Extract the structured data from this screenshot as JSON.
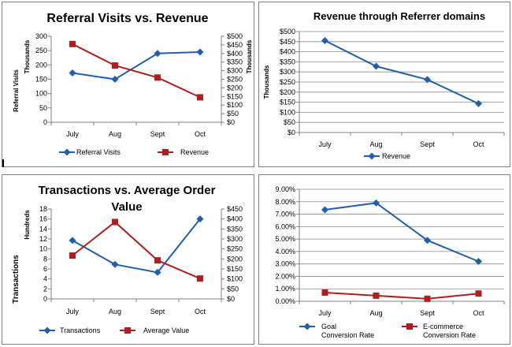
{
  "chart_data": [
    {
      "type": "line",
      "title_lines": [
        "Referral Visits vs. Revenue"
      ],
      "categories": [
        "July",
        "Aug",
        "Sept",
        "Oct"
      ],
      "ylabel": "Referral Visits",
      "y_unit": "Thousands",
      "y2_unit": "Thousands",
      "ylim": [
        0,
        300
      ],
      "y_ticks": [
        "0",
        "50",
        "100",
        "150",
        "200",
        "250",
        "300"
      ],
      "y2lim": [
        0,
        500
      ],
      "y2_ticks": [
        "$0",
        "$50",
        "$100",
        "$150",
        "$200",
        "$250",
        "$300",
        "$350",
        "$400",
        "$450",
        "$500"
      ],
      "legend_position": "bottom",
      "grid": false,
      "series": [
        {
          "name": "Referral Visits",
          "axis": "left",
          "color": "#1F5FAD",
          "marker": "diamond",
          "values": [
            172,
            150,
            240,
            245
          ]
        },
        {
          "name": "Revenue",
          "axis": "right",
          "color": "#B01E1E",
          "marker": "square",
          "values": [
            455,
            330,
            260,
            145
          ]
        }
      ]
    },
    {
      "type": "line",
      "title_lines": [
        "Revenue through  Referrer domains"
      ],
      "categories": [
        "July",
        "Aug",
        "Sept",
        "Oct"
      ],
      "y_unit": "Thousands",
      "ylim": [
        0,
        500
      ],
      "y_ticks": [
        "$0",
        "$50",
        "$100",
        "$150",
        "$200",
        "$250",
        "$300",
        "$350",
        "$400",
        "$450",
        "$500"
      ],
      "legend_position": "bottom",
      "grid": true,
      "series": [
        {
          "name": "Revenue",
          "axis": "left",
          "color": "#1F5FAD",
          "marker": "diamond",
          "values": [
            455,
            328,
            262,
            143
          ]
        }
      ]
    },
    {
      "type": "line",
      "title_lines": [
        "Transactions vs. Average Order",
        "Value"
      ],
      "categories": [
        "July",
        "Aug",
        "Sept",
        "Oct"
      ],
      "ylabel": "Transactions",
      "y_unit": "Hundreds",
      "ylim": [
        0,
        18
      ],
      "y_ticks": [
        "0",
        "2",
        "4",
        "6",
        "8",
        "10",
        "12",
        "14",
        "16",
        "18"
      ],
      "y2lim": [
        0,
        450
      ],
      "y2_ticks": [
        "$0",
        "$50",
        "$100",
        "$150",
        "$200",
        "$250",
        "$300",
        "$350",
        "$400",
        "$450"
      ],
      "legend_position": "bottom",
      "grid": false,
      "series": [
        {
          "name": "Transactions",
          "axis": "left",
          "color": "#1F5FAD",
          "marker": "diamond",
          "values": [
            11.7,
            6.9,
            5.3,
            16
          ]
        },
        {
          "name": "Average Value",
          "axis": "right",
          "color": "#B01E1E",
          "marker": "square",
          "values": [
            217,
            385,
            193,
            102
          ]
        }
      ]
    },
    {
      "type": "line",
      "title_lines": [],
      "categories": [
        "July",
        "Aug",
        "Sept",
        "Oct"
      ],
      "ylim": [
        0,
        9
      ],
      "y_ticks": [
        "0.00%",
        "1.00%",
        "2.00%",
        "3.00%",
        "4.00%",
        "5.00%",
        "6.00%",
        "7.00%",
        "8.00%",
        "9.00%"
      ],
      "legend_position": "bottom",
      "grid": true,
      "series": [
        {
          "name": "Goal Conversion Rate",
          "legend_lines": [
            "Goal",
            "Conversion Rate"
          ],
          "axis": "left",
          "color": "#1F5FAD",
          "marker": "diamond",
          "values": [
            7.35,
            7.9,
            4.9,
            3.2
          ]
        },
        {
          "name": "E-commerce Conversion Rate",
          "legend_lines": [
            "E-commerce",
            "Conversion Rate"
          ],
          "axis": "left",
          "color": "#B01E1E",
          "marker": "square",
          "values": [
            0.7,
            0.45,
            0.2,
            0.62
          ]
        }
      ]
    }
  ]
}
